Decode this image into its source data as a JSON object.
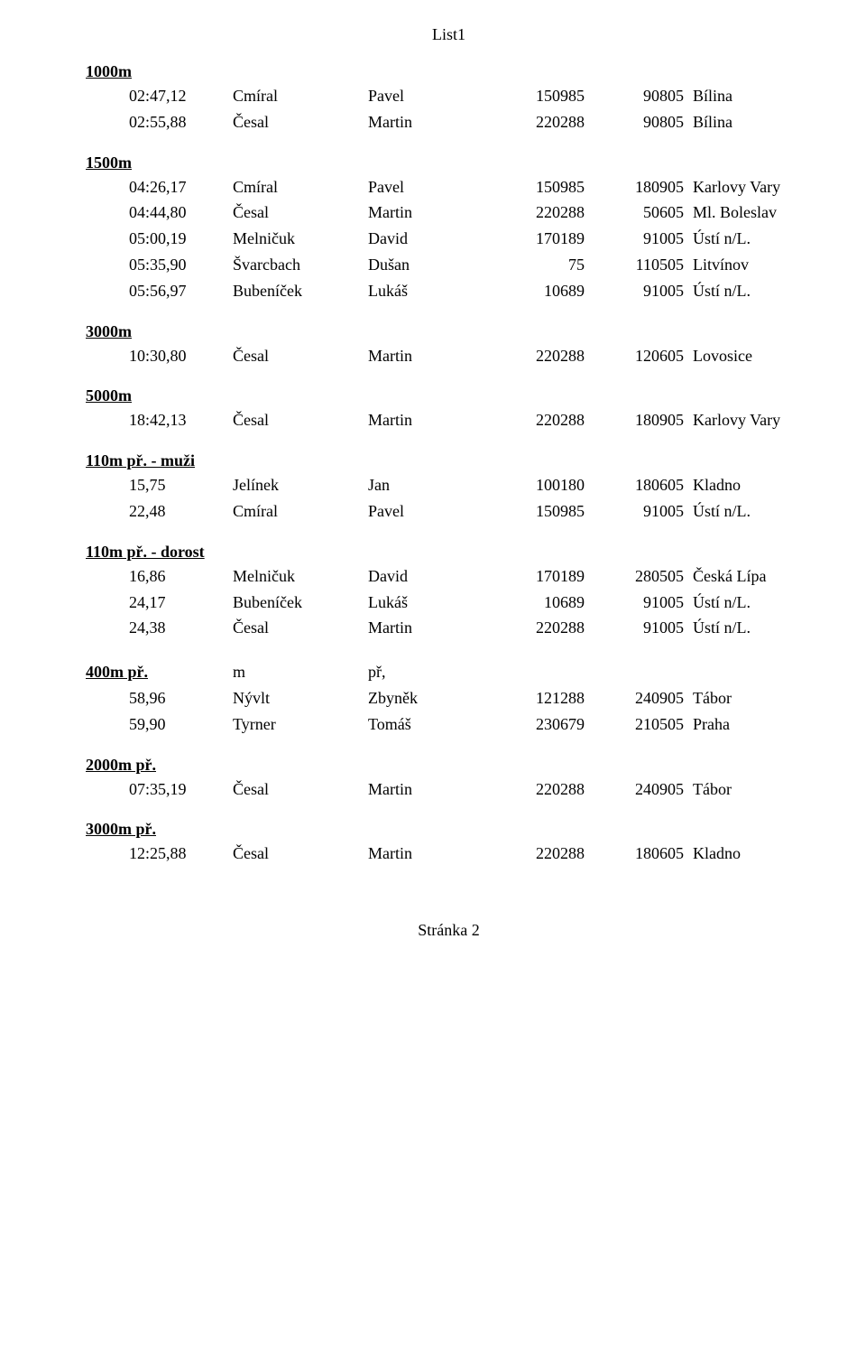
{
  "header": "List1",
  "footer": "Stránka 2",
  "sections": [
    {
      "title": "1000m",
      "rows": [
        {
          "c1": "02:47,12",
          "c2": "Cmíral",
          "c3": "Pavel",
          "c4": "150985",
          "c5": "90805",
          "c6": "Bílina"
        },
        {
          "c1": "02:55,88",
          "c2": "Česal",
          "c3": "Martin",
          "c4": "220288",
          "c5": "90805",
          "c6": "Bílina"
        }
      ]
    },
    {
      "title": "1500m",
      "rows": [
        {
          "c1": "04:26,17",
          "c2": "Cmíral",
          "c3": "Pavel",
          "c4": "150985",
          "c5": "180905",
          "c6": "Karlovy Vary"
        },
        {
          "c1": "04:44,80",
          "c2": "Česal",
          "c3": "Martin",
          "c4": "220288",
          "c5": "50605",
          "c6": "Ml. Boleslav"
        },
        {
          "c1": "05:00,19",
          "c2": "Melničuk",
          "c3": "David",
          "c4": "170189",
          "c5": "91005",
          "c6": "Ústí n/L."
        },
        {
          "c1": "05:35,90",
          "c2": "Švarcbach",
          "c3": "Dušan",
          "c4": "75",
          "c5": "110505",
          "c6": "Litvínov"
        },
        {
          "c1": "05:56,97",
          "c2": "Bubeníček",
          "c3": "Lukáš",
          "c4": "10689",
          "c5": "91005",
          "c6": "Ústí n/L."
        }
      ]
    },
    {
      "title": "3000m",
      "rows": [
        {
          "c1": "10:30,80",
          "c2": "Česal",
          "c3": "Martin",
          "c4": "220288",
          "c5": "120605",
          "c6": "Lovosice"
        }
      ]
    },
    {
      "title": "5000m",
      "rows": [
        {
          "c1": "18:42,13",
          "c2": "Česal",
          "c3": "Martin",
          "c4": "220288",
          "c5": "180905",
          "c6": "Karlovy Vary"
        }
      ]
    },
    {
      "title": "110m př. - muži",
      "rows": [
        {
          "c1": "15,75",
          "c2": "Jelínek",
          "c3": "Jan",
          "c4": "100180",
          "c5": "180605",
          "c6": "Kladno"
        },
        {
          "c1": "22,48",
          "c2": "Cmíral",
          "c3": "Pavel",
          "c4": "150985",
          "c5": "91005",
          "c6": "Ústí n/L."
        }
      ]
    },
    {
      "title": "110m př. - dorost",
      "rows": [
        {
          "c1": "16,86",
          "c2": "Melničuk",
          "c3": "David",
          "c4": "170189",
          "c5": "280505",
          "c6": "Česká Lípa"
        },
        {
          "c1": "24,17",
          "c2": "Bubeníček",
          "c3": "Lukáš",
          "c4": "10689",
          "c5": "91005",
          "c6": "Ústí n/L."
        },
        {
          "c1": "24,38",
          "c2": "Česal",
          "c3": "Martin",
          "c4": "220288",
          "c5": "91005",
          "c6": "Ústí n/L."
        }
      ]
    }
  ],
  "section_400": {
    "title": "400m př.",
    "h2": "m",
    "h3": "př,",
    "rows": [
      {
        "c1": "58,96",
        "c2": "Nývlt",
        "c3": "Zbyněk",
        "c4": "121288",
        "c5": "240905",
        "c6": "Tábor"
      },
      {
        "c1": "59,90",
        "c2": "Tyrner",
        "c3": "Tomáš",
        "c4": "230679",
        "c5": "210505",
        "c6": "Praha"
      }
    ]
  },
  "sections_after": [
    {
      "title": "2000m př.",
      "rows": [
        {
          "c1": "07:35,19",
          "c2": "Česal",
          "c3": "Martin",
          "c4": "220288",
          "c5": "240905",
          "c6": "Tábor"
        }
      ]
    },
    {
      "title": "3000m př.",
      "rows": [
        {
          "c1": "12:25,88",
          "c2": "Česal",
          "c3": "Martin",
          "c4": "220288",
          "c5": "180605",
          "c6": "Kladno"
        }
      ]
    }
  ]
}
